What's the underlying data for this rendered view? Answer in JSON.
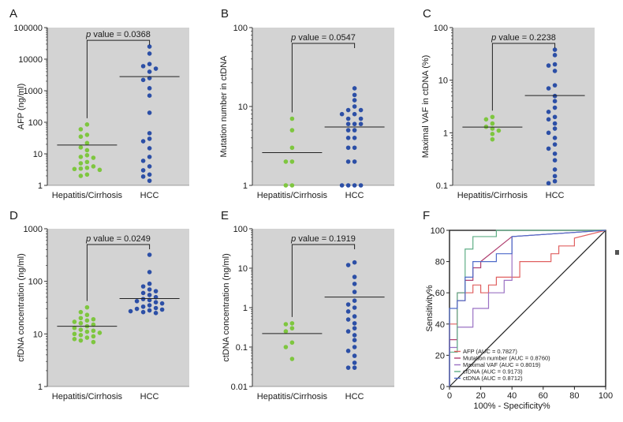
{
  "chart_data": [
    {
      "panel": "A",
      "type": "scatter",
      "scale": "log",
      "ylabel": "AFP (ng/ml)",
      "ylim": [
        1,
        100000
      ],
      "yticks": [
        "1",
        "10",
        "100",
        "1000",
        "10000",
        "100000"
      ],
      "categories": [
        "Hepatitis/Cirrhosis",
        "HCC"
      ],
      "p_value_label": "p",
      "p_value_text": " value = 0.0368",
      "series": [
        {
          "name": "Hepatitis/Cirrhosis",
          "color": "#7ec63f",
          "median": 19,
          "values": [
            85,
            60,
            40,
            35,
            22,
            16,
            13,
            9,
            8,
            7.5,
            5.5,
            5,
            4,
            3.6,
            3.4,
            3.3,
            3.1,
            2.2,
            2
          ]
        },
        {
          "name": "HCC",
          "color": "#2c4fa6",
          "median": 2800,
          "values": [
            25000,
            15000,
            7000,
            6000,
            5000,
            4000,
            2500,
            2200,
            1200,
            700,
            200,
            45,
            30,
            25,
            15,
            8,
            6,
            4,
            3,
            2.2,
            1.9,
            1.4
          ]
        }
      ]
    },
    {
      "panel": "B",
      "type": "scatter",
      "scale": "log",
      "ylabel": "Mutation number in ctDNA",
      "ylim": [
        1,
        100
      ],
      "yticks": [
        "1",
        "10",
        "100"
      ],
      "categories": [
        "Hepatitis/Cirrhosis",
        "HCC"
      ],
      "p_value_label": "p",
      "p_value_text": " value = 0.0547",
      "series": [
        {
          "name": "Hepatitis/Cirrhosis",
          "color": "#7ec63f",
          "median": 2.6,
          "values": [
            7,
            5,
            3,
            2,
            2,
            1,
            1
          ]
        },
        {
          "name": "HCC",
          "color": "#2c4fa6",
          "median": 5.5,
          "values": [
            17,
            14,
            12,
            10,
            9,
            9,
            8,
            8,
            7,
            7,
            6,
            6,
            6,
            5,
            5,
            4,
            4,
            3,
            3,
            2,
            2,
            1,
            1,
            1,
            1
          ]
        }
      ]
    },
    {
      "panel": "C",
      "type": "scatter",
      "scale": "log",
      "ylabel": "Maximal VAF in ctDNA (%)",
      "ylim": [
        0.1,
        100
      ],
      "yticks": [
        "0.1",
        "1",
        "10",
        "100"
      ],
      "categories": [
        "Hepatitis/Cirrhosis",
        "HCC"
      ],
      "p_value_label": "p",
      "p_value_text": " value = 0.2238",
      "series": [
        {
          "name": "Hepatitis/Cirrhosis",
          "color": "#7ec63f",
          "median": 1.28,
          "values": [
            2,
            1.8,
            1.5,
            1.3,
            1.2,
            1.1,
            0.95,
            0.75
          ]
        },
        {
          "name": "HCC",
          "color": "#2c4fa6",
          "median": 5.1,
          "values": [
            38,
            30,
            20,
            19,
            15,
            8,
            7,
            5,
            4,
            3,
            2.5,
            2,
            1.8,
            1.5,
            1.2,
            1,
            0.8,
            0.6,
            0.5,
            0.4,
            0.3,
            0.2,
            0.15,
            0.12,
            0.11
          ]
        }
      ]
    },
    {
      "panel": "D",
      "type": "scatter",
      "scale": "log",
      "ylabel": "cfDNA concentration (ng/ml)",
      "ylim": [
        1,
        1000
      ],
      "yticks": [
        "1",
        "10",
        "100",
        "1000"
      ],
      "categories": [
        "Hepatitis/Cirrhosis",
        "HCC"
      ],
      "p_value_label": "p",
      "p_value_text": " value = 0.0249",
      "series": [
        {
          "name": "Hepatitis/Cirrhosis",
          "color": "#7ec63f",
          "median": 14,
          "values": [
            32,
            26,
            23,
            20,
            19,
            18,
            17,
            16,
            15,
            14,
            13,
            12,
            11.5,
            11,
            10.5,
            10,
            9.5,
            9,
            8.5,
            8,
            7.5,
            7
          ]
        },
        {
          "name": "HCC",
          "color": "#2c4fa6",
          "median": 47,
          "values": [
            320,
            150,
            90,
            80,
            70,
            65,
            60,
            55,
            50,
            46,
            44,
            42,
            40,
            38,
            35,
            33,
            31,
            30,
            29,
            28,
            27,
            26,
            25
          ]
        }
      ]
    },
    {
      "panel": "E",
      "type": "scatter",
      "scale": "log",
      "ylabel": "ctDNA concentration (ng/ml)",
      "ylim": [
        0.01,
        100
      ],
      "yticks": [
        "0.01",
        "0.1",
        "1",
        "10",
        "100"
      ],
      "categories": [
        "Hepatitis/Cirrhosis",
        "HCC"
      ],
      "p_value_label": "p",
      "p_value_text": " value = 0.1919",
      "series": [
        {
          "name": "Hepatitis/Cirrhosis",
          "color": "#7ec63f",
          "median": 0.22,
          "values": [
            0.4,
            0.38,
            0.3,
            0.25,
            0.13,
            0.1,
            0.05
          ]
        },
        {
          "name": "HCC",
          "color": "#2c4fa6",
          "median": 1.85,
          "values": [
            14,
            12,
            6,
            4,
            2.5,
            1.5,
            1.2,
            1,
            0.8,
            0.6,
            0.5,
            0.4,
            0.3,
            0.25,
            0.2,
            0.15,
            0.1,
            0.08,
            0.06,
            0.04,
            0.03,
            0.03
          ]
        }
      ]
    },
    {
      "panel": "F",
      "type": "line",
      "xlabel": "100% - Specificity%",
      "ylabel": "Sensitivity%",
      "xlim": [
        0,
        100
      ],
      "ylim": [
        0,
        100
      ],
      "xticks": [
        "0",
        "20",
        "40",
        "60",
        "80",
        "100"
      ],
      "yticks": [
        "0",
        "20",
        "40",
        "60",
        "80",
        "100"
      ],
      "series": [
        {
          "name": "AFP (AUC = 0.7827)",
          "color": "#e06060",
          "x": [
            0,
            0,
            5,
            5,
            10,
            10,
            15,
            15,
            20,
            20,
            25,
            25,
            30,
            30,
            45,
            45,
            65,
            65,
            70,
            70,
            80,
            80,
            100
          ],
          "y": [
            0,
            40,
            40,
            55,
            55,
            60,
            60,
            65,
            65,
            60,
            60,
            65,
            65,
            70,
            70,
            80,
            80,
            85,
            85,
            90,
            90,
            95,
            100
          ]
        },
        {
          "name": "Mutation number (AUC = 0.8760)",
          "color": "#b04070",
          "x": [
            0,
            0,
            5,
            5,
            10,
            10,
            15,
            15,
            20,
            20,
            40,
            100
          ],
          "y": [
            0,
            30,
            30,
            60,
            60,
            68,
            68,
            76,
            76,
            80,
            96,
            100
          ]
        },
        {
          "name": "Maximal VAF (AUC = 0.8019)",
          "color": "#9b72c4",
          "x": [
            0,
            0,
            5,
            5,
            15,
            15,
            25,
            25,
            35,
            35,
            40,
            40,
            100
          ],
          "y": [
            0,
            25,
            25,
            38,
            38,
            50,
            50,
            60,
            60,
            68,
            68,
            96,
            100
          ]
        },
        {
          "name": "cfDNA (AUC = 0.9173)",
          "color": "#5fae86",
          "x": [
            0,
            0,
            5,
            5,
            10,
            10,
            15,
            15,
            30,
            30,
            100
          ],
          "y": [
            0,
            22,
            22,
            60,
            60,
            88,
            88,
            96,
            96,
            100,
            100
          ]
        },
        {
          "name": "ctDNA (AUC = 0.8712)",
          "color": "#4f6bc9",
          "x": [
            0,
            0,
            5,
            5,
            10,
            10,
            15,
            15,
            30,
            30,
            40,
            40,
            100
          ],
          "y": [
            0,
            50,
            50,
            55,
            55,
            70,
            70,
            80,
            80,
            85,
            85,
            96,
            100
          ]
        }
      ],
      "reference_line": {
        "x": [
          0,
          100
        ],
        "y": [
          0,
          100
        ],
        "color": "#222222"
      }
    }
  ]
}
